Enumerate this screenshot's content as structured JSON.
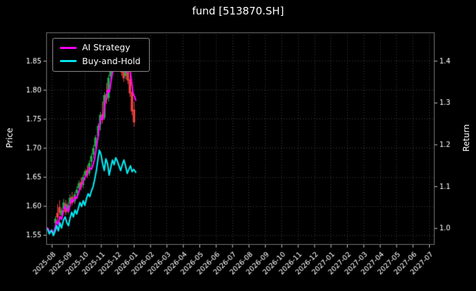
{
  "title": "fund [513870.SH]",
  "axes": {
    "left_label": "Price",
    "right_label": "Return"
  },
  "legend": [
    {
      "label": "AI Strategy",
      "color": "#ff00ff"
    },
    {
      "label": "Buy-and-Hold",
      "color": "#00e5ee"
    }
  ],
  "colors": {
    "background": "#000000",
    "text": "#ffffff",
    "grid": "#454545",
    "frame": "#7a7a7a",
    "tick": "#cccccc",
    "candle_up": "#1fa84a",
    "candle_down": "#ef4040"
  },
  "chart_data": {
    "type": "candlestick",
    "title": "fund [513870.SH]",
    "xlabel": "",
    "x_tick_rotation": 45,
    "grid": "dotted",
    "legend_position": "upper-left",
    "x_ticks": [
      "2025-08",
      "2025-09",
      "2025-10",
      "2025-11",
      "2025-12",
      "2026-01",
      "2026-02",
      "2026-03",
      "2026-04",
      "2026-05",
      "2026-06",
      "2026-07",
      "2026-08",
      "2026-09",
      "2026-10",
      "2026-11",
      "2026-12",
      "2027-01",
      "2027-02",
      "2027-03",
      "2027-04",
      "2027-05",
      "2027-06",
      "2027-07"
    ],
    "x_unit": "months-from-2025-08",
    "price_axis": {
      "label": "Price",
      "range": [
        1.533,
        1.899
      ],
      "ticks": [
        1.55,
        1.6,
        1.65,
        1.7,
        1.75,
        1.8,
        1.85
      ]
    },
    "return_axis": {
      "label": "Return",
      "range": [
        0.96,
        1.468
      ],
      "ticks": [
        1.0,
        1.1,
        1.2,
        1.3,
        1.4
      ]
    },
    "series": [
      {
        "name": "AI Strategy",
        "color": "#ff00ff",
        "points": [
          [
            -0.25,
            1.562
          ],
          [
            -0.15,
            1.556
          ],
          [
            0.0,
            1.558
          ],
          [
            0.1,
            1.552
          ],
          [
            0.2,
            1.562
          ],
          [
            0.3,
            1.574
          ],
          [
            0.4,
            1.568
          ],
          [
            0.5,
            1.582
          ],
          [
            0.6,
            1.577
          ],
          [
            0.72,
            1.592
          ],
          [
            0.82,
            1.6
          ],
          [
            0.92,
            1.594
          ],
          [
            1.02,
            1.59
          ],
          [
            1.12,
            1.602
          ],
          [
            1.22,
            1.612
          ],
          [
            1.32,
            1.607
          ],
          [
            1.42,
            1.616
          ],
          [
            1.52,
            1.613
          ],
          [
            1.62,
            1.622
          ],
          [
            1.72,
            1.63
          ],
          [
            1.82,
            1.636
          ],
          [
            1.92,
            1.642
          ],
          [
            2.02,
            1.649
          ],
          [
            2.12,
            1.653
          ],
          [
            2.22,
            1.661
          ],
          [
            2.32,
            1.666
          ],
          [
            2.42,
            1.663
          ],
          [
            2.52,
            1.671
          ],
          [
            2.62,
            1.682
          ],
          [
            2.72,
            1.7
          ],
          [
            2.82,
            1.72
          ],
          [
            2.92,
            1.74
          ],
          [
            3.02,
            1.753
          ],
          [
            3.12,
            1.749
          ],
          [
            3.22,
            1.77
          ],
          [
            3.32,
            1.788
          ],
          [
            3.42,
            1.8
          ],
          [
            3.52,
            1.796
          ],
          [
            3.62,
            1.816
          ],
          [
            3.72,
            1.832
          ],
          [
            3.82,
            1.848
          ],
          [
            3.92,
            1.86
          ],
          [
            4.02,
            1.852
          ],
          [
            4.12,
            1.842
          ],
          [
            4.22,
            1.854
          ],
          [
            4.32,
            1.862
          ],
          [
            4.45,
            1.846
          ],
          [
            4.6,
            1.83
          ],
          [
            4.72,
            1.843
          ],
          [
            4.85,
            1.818
          ],
          [
            4.95,
            1.795
          ],
          [
            5.05,
            1.788
          ],
          [
            5.12,
            1.782
          ]
        ]
      },
      {
        "name": "Buy-and-Hold",
        "color": "#00e5ee",
        "points": [
          [
            -0.25,
            1.56
          ],
          [
            -0.15,
            1.552
          ],
          [
            0.0,
            1.558
          ],
          [
            0.1,
            1.549
          ],
          [
            0.2,
            1.556
          ],
          [
            0.3,
            1.566
          ],
          [
            0.4,
            1.557
          ],
          [
            0.5,
            1.571
          ],
          [
            0.6,
            1.562
          ],
          [
            0.72,
            1.576
          ],
          [
            0.82,
            1.581
          ],
          [
            0.92,
            1.571
          ],
          [
            1.02,
            1.566
          ],
          [
            1.12,
            1.579
          ],
          [
            1.22,
            1.589
          ],
          [
            1.32,
            1.581
          ],
          [
            1.42,
            1.593
          ],
          [
            1.52,
            1.586
          ],
          [
            1.62,
            1.596
          ],
          [
            1.72,
            1.606
          ],
          [
            1.82,
            1.599
          ],
          [
            1.92,
            1.609
          ],
          [
            2.02,
            1.601
          ],
          [
            2.12,
            1.613
          ],
          [
            2.22,
            1.621
          ],
          [
            2.32,
            1.616
          ],
          [
            2.42,
            1.626
          ],
          [
            2.52,
            1.633
          ],
          [
            2.62,
            1.646
          ],
          [
            2.72,
            1.661
          ],
          [
            2.82,
            1.681
          ],
          [
            2.9,
            1.696
          ],
          [
            3.0,
            1.689
          ],
          [
            3.1,
            1.673
          ],
          [
            3.2,
            1.661
          ],
          [
            3.3,
            1.681
          ],
          [
            3.4,
            1.673
          ],
          [
            3.5,
            1.653
          ],
          [
            3.6,
            1.666
          ],
          [
            3.7,
            1.679
          ],
          [
            3.8,
            1.671
          ],
          [
            3.9,
            1.683
          ],
          [
            4.0,
            1.677
          ],
          [
            4.1,
            1.669
          ],
          [
            4.2,
            1.661
          ],
          [
            4.3,
            1.671
          ],
          [
            4.4,
            1.679
          ],
          [
            4.5,
            1.669
          ],
          [
            4.6,
            1.656
          ],
          [
            4.7,
            1.663
          ],
          [
            4.8,
            1.669
          ],
          [
            4.9,
            1.659
          ],
          [
            5.0,
            1.663
          ],
          [
            5.12,
            1.658
          ]
        ]
      }
    ],
    "candles": [
      [
        0.2,
        1.57,
        1.582,
        1.56,
        1.578
      ],
      [
        0.33,
        1.588,
        1.603,
        1.574,
        1.58
      ],
      [
        0.46,
        1.598,
        1.61,
        1.584,
        1.588
      ],
      [
        0.59,
        1.584,
        1.597,
        1.576,
        1.593
      ],
      [
        0.72,
        1.595,
        1.612,
        1.588,
        1.606
      ],
      [
        0.85,
        1.604,
        1.61,
        1.584,
        1.589
      ],
      [
        0.98,
        1.592,
        1.606,
        1.586,
        1.602
      ],
      [
        1.11,
        1.604,
        1.62,
        1.598,
        1.614
      ],
      [
        1.24,
        1.616,
        1.624,
        1.601,
        1.605
      ],
      [
        1.37,
        1.608,
        1.624,
        1.603,
        1.62
      ],
      [
        1.5,
        1.622,
        1.634,
        1.612,
        1.628
      ],
      [
        1.63,
        1.63,
        1.644,
        1.622,
        1.639
      ],
      [
        1.76,
        1.641,
        1.649,
        1.627,
        1.632
      ],
      [
        1.89,
        1.636,
        1.654,
        1.63,
        1.65
      ],
      [
        2.02,
        1.652,
        1.664,
        1.644,
        1.66
      ],
      [
        2.15,
        1.662,
        1.67,
        1.648,
        1.653
      ],
      [
        2.28,
        1.656,
        1.678,
        1.652,
        1.674
      ],
      [
        2.41,
        1.676,
        1.69,
        1.668,
        1.686
      ],
      [
        2.54,
        1.688,
        1.705,
        1.682,
        1.7
      ],
      [
        2.67,
        1.702,
        1.722,
        1.696,
        1.718
      ],
      [
        2.8,
        1.72,
        1.742,
        1.714,
        1.738
      ],
      [
        2.93,
        1.74,
        1.762,
        1.73,
        1.757
      ],
      [
        3.06,
        1.758,
        1.78,
        1.742,
        1.748
      ],
      [
        3.19,
        1.752,
        1.796,
        1.748,
        1.791
      ],
      [
        3.32,
        1.793,
        1.812,
        1.776,
        1.783
      ],
      [
        3.45,
        1.786,
        1.826,
        1.78,
        1.821
      ],
      [
        3.58,
        1.823,
        1.85,
        1.815,
        1.845
      ],
      [
        3.71,
        1.847,
        1.872,
        1.838,
        1.866
      ],
      [
        3.84,
        1.868,
        1.884,
        1.852,
        1.878
      ],
      [
        3.97,
        1.876,
        1.882,
        1.84,
        1.848
      ],
      [
        4.1,
        1.85,
        1.874,
        1.842,
        1.868
      ],
      [
        4.23,
        1.866,
        1.872,
        1.824,
        1.83
      ],
      [
        4.36,
        1.832,
        1.854,
        1.814,
        1.82
      ],
      [
        4.49,
        1.824,
        1.86,
        1.818,
        1.852
      ],
      [
        4.62,
        1.85,
        1.858,
        1.81,
        1.816
      ],
      [
        4.75,
        1.818,
        1.828,
        1.788,
        1.794
      ],
      [
        4.88,
        1.796,
        1.806,
        1.756,
        1.763
      ],
      [
        5.01,
        1.766,
        1.78,
        1.736,
        1.744
      ]
    ]
  }
}
